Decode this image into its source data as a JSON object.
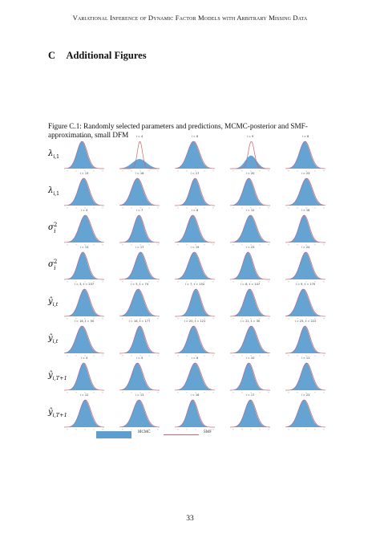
{
  "header": {
    "running_head": "Variational Inference of Dynamic Factor Models with Arbitrary Missing Data"
  },
  "section": {
    "number": "C",
    "title": "Additional Figures"
  },
  "figure": {
    "caption": "Figure C.1: Randomly selected parameters and predictions, MCMC-posterior and SMF-approximation, small DFM",
    "rows": [
      {
        "label": "λ_{i,1}",
        "panels": [
          "i = 1",
          "i = 4",
          "i = 6",
          "i = 9",
          "i = 8"
        ]
      },
      {
        "label": "λ_{i,1}",
        "panels": [
          "i = 13",
          "i = 16",
          "i = 17",
          "i = 20",
          "i = 23"
        ]
      },
      {
        "label": "σ²_i",
        "panels": [
          "i = 4",
          "i = 7",
          "i = 8",
          "i = 12",
          "i = 16"
        ]
      },
      {
        "label": "σ²_i",
        "panels": [
          "i = 13",
          "i = 17",
          "i = 19",
          "i = 23",
          "i = 24"
        ]
      },
      {
        "label": "ŷ_{i,t}",
        "panels": [
          "i = 3, t = 237",
          "i = 5, t = 74",
          "i = 7, t = 152",
          "i = 8, t = 147",
          "i = 9, t = 170"
        ]
      },
      {
        "label": "ŷ_{i,t}",
        "panels": [
          "i = 16, t = 50",
          "i = 18, t = 177",
          "i = 20, t = 121",
          "i = 21, t = 30",
          "i = 25, t = 222"
        ]
      },
      {
        "label": "ŷ_{i,T+1}",
        "panels": [
          "i = 4",
          "i = 5",
          "i = 6",
          "i = 10",
          "i = 11"
        ]
      },
      {
        "label": "ŷ_{i,T+1}",
        "panels": [
          "i = 12",
          "i = 13",
          "i = 16",
          "i = 17",
          "i = 23"
        ]
      }
    ],
    "legend": {
      "mcmc": "MCMC",
      "smf": "SMF"
    },
    "colors": {
      "mcmc_fill": "#5d9ed1",
      "smf_line": "#d1626d"
    }
  },
  "page_number": "33"
}
